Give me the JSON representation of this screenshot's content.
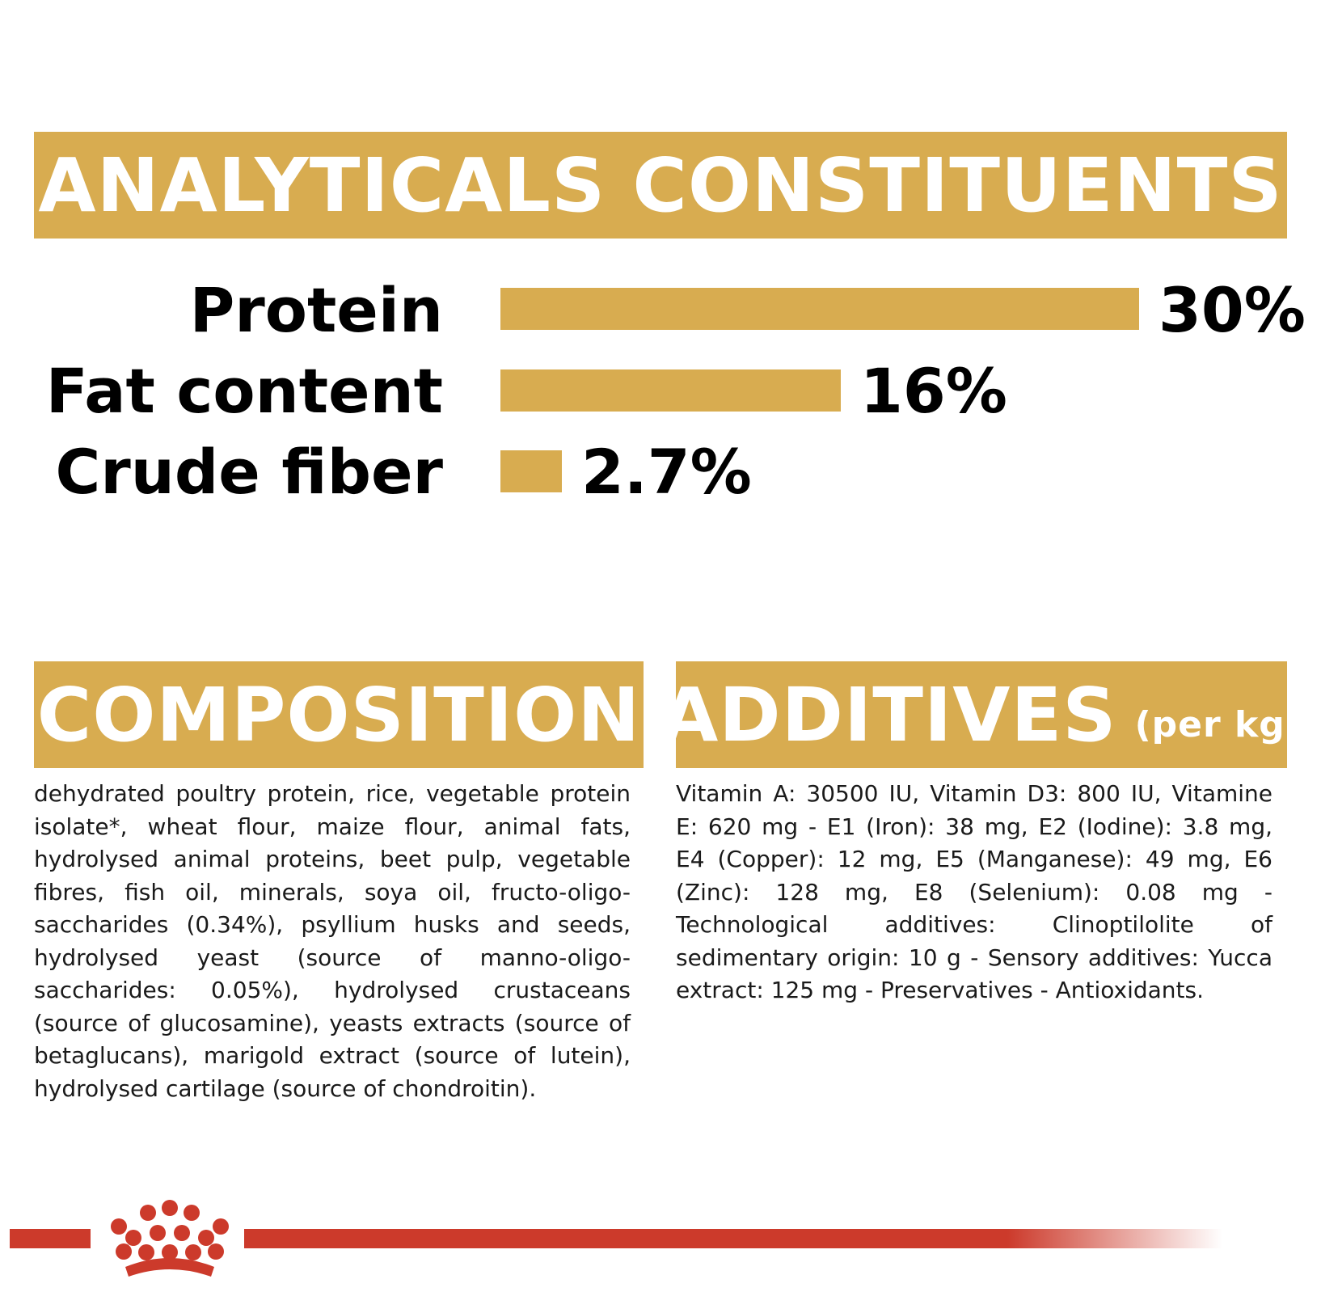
{
  "analyticals": {
    "title": "ANALYTICALS CONSTITUENTS",
    "rows": [
      {
        "label": "Protein",
        "value": "30%",
        "fraction": 0.3
      },
      {
        "label": "Fat content",
        "value": "16%",
        "fraction": 0.16
      },
      {
        "label": "Crude fiber",
        "value": "2.7%",
        "fraction": 0.027
      }
    ]
  },
  "composition": {
    "title": "COMPOSITION",
    "text": "dehydrated poultry protein, rice, vegetable protein isolate*, wheat flour, maize flour, animal fats, hydrolysed animal proteins, beet pulp, vegetable fibres, fish oil, minerals, soya oil, fructo-oligo-saccharides (0.34%), psyllium husks and seeds, hydrolysed yeast (source of manno-oligo-saccharides: 0.05%), hydrolysed crustaceans (source of glucosamine), yeasts extracts (source of betaglucans), marigold extract (source of lutein), hydrolysed cartilage (source of chondroitin)."
  },
  "additives": {
    "title": "ADDITIVES",
    "title_suffix": "(per kg)",
    "text": "Vitamin A: 30500 IU, Vitamin D3: 800 IU, Vitamine E: 620 mg - E1 (Iron): 38 mg, E2 (Iodine): 3.8 mg, E4 (Copper): 12 mg, E5 (Manganese): 49 mg, E6 (Zinc): 128 mg, E8 (Selenium): 0.08 mg - Technological additives: Clinoptilolite of sedimentary origin: 10 g - Sensory additives: Yucca extract: 125 mg - Preservatives - Antioxidants."
  },
  "colors": {
    "gold": "#d8ac50",
    "brand_red": "#cc3a2b",
    "text": "#000000"
  },
  "footer": {
    "logo_icon": "royal-canin-crown-icon"
  }
}
